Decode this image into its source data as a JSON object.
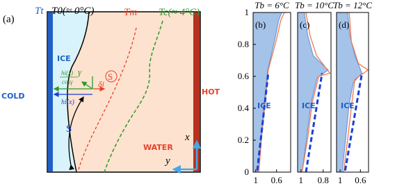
{
  "diagram": {
    "panel_label": "(a)",
    "t_t": "Tt",
    "t_0": "T0(≈ 0°C)",
    "t_m": "Tm",
    "t_c": "Tc(≈ 4°C)",
    "ice": "ICE",
    "cold": "COLD",
    "hot": "HOT",
    "water": "WATER",
    "h_cos_num": "hi(x)",
    "h_cos_den": "cosγ",
    "gamma": "γ",
    "delta": "δi",
    "s_right": "S",
    "s_left": "S",
    "h": "hi(x)",
    "axis_x": "x",
    "axis_y": "y"
  },
  "chart_data": [
    {
      "type": "line",
      "title": "Tb = 6°C",
      "panel_label": "(b)",
      "annotation": "ICE",
      "xlim": [
        1.05,
        0.33
      ],
      "ylim": [
        0,
        1
      ],
      "xticks": [
        1,
        0.6
      ],
      "yticks": [
        0,
        0.2,
        0.4,
        0.6,
        0.8,
        1
      ],
      "series": [
        {
          "style": "area",
          "color": "#5b8fd6",
          "x": [
            0.96,
            0.9,
            0.84,
            0.77,
            0.64,
            0.56,
            0.5
          ],
          "values": [
            0,
            0.21,
            0.43,
            0.64,
            0.82,
            0.95,
            1
          ]
        },
        {
          "style": "solid",
          "color": "#f07850",
          "x": [
            0.94,
            0.89,
            0.82,
            0.76,
            0.61,
            0.52,
            0.45
          ],
          "values": [
            0,
            0.21,
            0.43,
            0.64,
            0.82,
            0.95,
            1
          ]
        },
        {
          "style": "dashed",
          "color": "#1a3fd6",
          "x": [
            0.97,
            0.76
          ],
          "values": [
            0.01,
            0.62
          ]
        }
      ]
    },
    {
      "type": "line",
      "title": "Tb = 10°C",
      "panel_label": "(c)",
      "annotation": "ICE",
      "xlim": [
        1.03,
        0.73
      ],
      "ylim": [
        0,
        1
      ],
      "xticks": [
        1,
        0.8
      ],
      "series": [
        {
          "style": "area",
          "color": "#5b8fd6",
          "x": [
            0.99,
            0.95,
            0.91,
            0.855,
            0.755,
            0.89,
            0.94,
            0.97
          ],
          "values": [
            0,
            0.21,
            0.43,
            0.59,
            0.64,
            0.73,
            0.86,
            1
          ]
        },
        {
          "style": "solid",
          "color": "#f07850",
          "x": [
            0.99,
            0.94,
            0.9,
            0.84,
            0.74,
            0.86,
            0.92,
            0.955
          ],
          "values": [
            0,
            0.21,
            0.43,
            0.6,
            0.62,
            0.73,
            0.86,
            1
          ]
        },
        {
          "style": "dashed",
          "color": "#1a3fd6",
          "x": [
            0.955,
            0.81
          ],
          "values": [
            0,
            0.62
          ]
        }
      ]
    },
    {
      "type": "line",
      "title": "Tb = 12°C",
      "panel_label": "(d)",
      "annotation": "ICE",
      "xlim": [
        1.07,
        0.44
      ],
      "ylim": [
        0,
        1
      ],
      "xticks": [
        1,
        0.6
      ],
      "series": [
        {
          "style": "area",
          "color": "#5b8fd6",
          "x": [
            0.96,
            0.89,
            0.82,
            0.74,
            0.57,
            0.71,
            0.81,
            0.85
          ],
          "values": [
            0,
            0.21,
            0.43,
            0.56,
            0.62,
            0.73,
            0.86,
            1
          ]
        },
        {
          "style": "solid",
          "color": "#f07850",
          "x": [
            0.93,
            0.85,
            0.77,
            0.71,
            0.45,
            0.64,
            0.78,
            0.82
          ],
          "values": [
            0,
            0.21,
            0.43,
            0.58,
            0.64,
            0.68,
            0.82,
            1
          ]
        },
        {
          "style": "dashed",
          "color": "#1a3fd6",
          "x": [
            0.9,
            0.57
          ],
          "values": [
            0.01,
            0.62
          ]
        }
      ]
    }
  ]
}
